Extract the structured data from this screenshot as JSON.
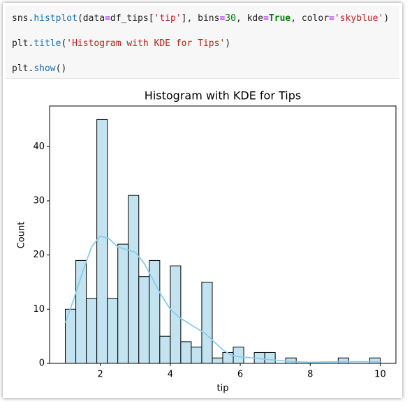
{
  "code": {
    "lines": [
      [
        "sns",
        ".",
        "histplot",
        "(data",
        "=",
        "df_tips[",
        "'tip'",
        "], bins",
        "=",
        "30",
        ", kde",
        "=",
        "True",
        ", color",
        "=",
        "'skyblue'",
        ")"
      ],
      [
        "plt",
        ".",
        "title",
        "(",
        "'Histogram with KDE for Tips'",
        ")"
      ],
      [
        "plt",
        ".",
        "show",
        "()"
      ]
    ]
  },
  "chart_data": {
    "type": "histogram",
    "title": "Histogram with KDE for Tips",
    "x_label": "tip",
    "y_label": "Count",
    "bins": [
      1.0,
      1.3,
      1.6,
      1.9,
      2.2,
      2.5,
      2.8,
      3.1,
      3.4,
      3.7,
      4.0,
      4.3,
      4.6,
      4.9,
      5.2,
      5.5,
      5.8,
      6.1,
      6.4,
      6.7,
      7.0,
      7.3,
      7.6,
      7.9,
      8.2,
      8.5,
      8.8,
      9.1,
      9.4,
      9.7,
      10.0
    ],
    "counts": [
      10,
      19,
      12,
      45,
      12,
      22,
      31,
      16,
      19,
      5,
      18,
      4,
      3,
      15,
      1,
      2,
      3,
      0,
      2,
      2,
      0,
      1,
      0,
      0,
      0,
      0,
      1,
      0,
      0,
      1
    ],
    "color": "#c3e3f0",
    "kde": {
      "color": "#87ceeb",
      "x": [
        1.0,
        1.25,
        1.5,
        1.75,
        2.0,
        2.25,
        2.5,
        2.75,
        3.0,
        3.25,
        3.5,
        3.75,
        4.0,
        4.25,
        4.5,
        4.75,
        5.0,
        5.25,
        5.5,
        5.75,
        6.0,
        6.5,
        7.0,
        7.5,
        8.0,
        8.5,
        9.0,
        9.5,
        10.0
      ],
      "y": [
        7.5,
        12,
        17,
        21.5,
        23.5,
        23,
        21.5,
        21,
        20.5,
        18.5,
        15.5,
        12.5,
        10,
        8.5,
        7.5,
        6.5,
        5.5,
        4,
        2.5,
        1.5,
        1.2,
        0.9,
        0.6,
        0.3,
        0.2,
        0.25,
        0.3,
        0.3,
        0.3
      ]
    },
    "xlim": [
      0.55,
      10.45
    ],
    "ylim": [
      0,
      47.5
    ],
    "xticks": [
      2,
      4,
      6,
      8,
      10
    ],
    "yticks": [
      0,
      10,
      20,
      30,
      40
    ]
  }
}
